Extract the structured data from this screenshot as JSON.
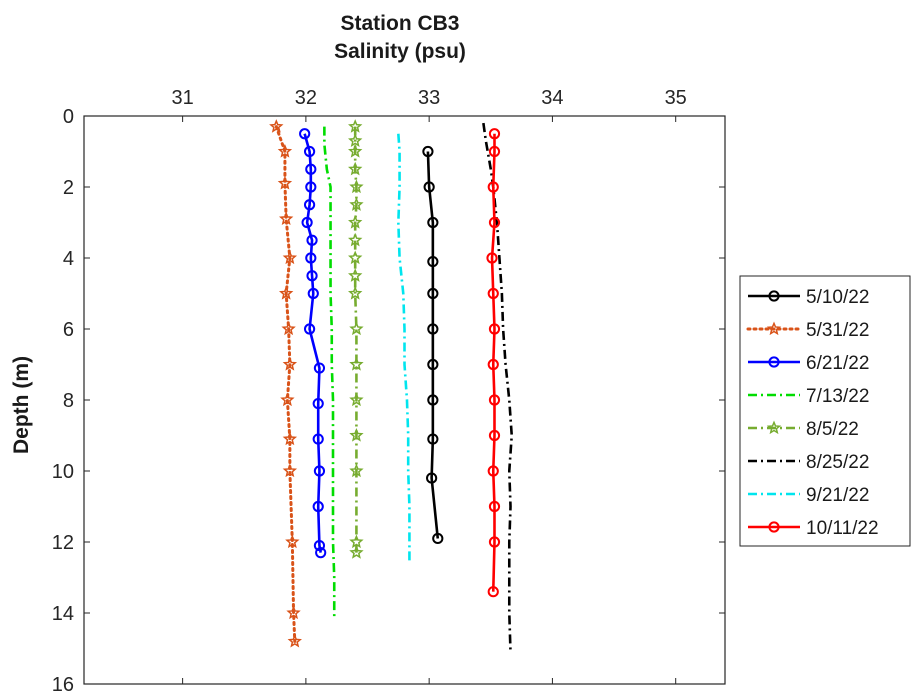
{
  "chart_data": {
    "type": "line",
    "title": "Station CB3",
    "xlabel": "Salinity (psu)",
    "ylabel": "Depth (m)",
    "x_axis_position": "top",
    "y_reversed": true,
    "xlim": [
      30.2,
      35.4
    ],
    "ylim": [
      0,
      16
    ],
    "xticks": [
      31,
      32,
      33,
      34,
      35
    ],
    "yticks": [
      0,
      2,
      4,
      6,
      8,
      10,
      12,
      14,
      16
    ],
    "grid": false,
    "legend_position": "right",
    "series": [
      {
        "name": "5/10/22",
        "color": "#000000",
        "dash": "solid",
        "marker": "circle",
        "points": [
          [
            32.99,
            1.0
          ],
          [
            33.0,
            2.0
          ],
          [
            33.03,
            3.0
          ],
          [
            33.03,
            4.1
          ],
          [
            33.03,
            5.0
          ],
          [
            33.03,
            6.0
          ],
          [
            33.03,
            7.0
          ],
          [
            33.03,
            8.0
          ],
          [
            33.03,
            9.1
          ],
          [
            33.02,
            10.2
          ],
          [
            33.07,
            11.9
          ]
        ]
      },
      {
        "name": "5/31/22",
        "color": "#d95319",
        "dash": "dotted",
        "marker": "star",
        "points": [
          [
            31.76,
            0.3
          ],
          [
            31.83,
            1.0
          ],
          [
            31.83,
            1.9
          ],
          [
            31.84,
            2.9
          ],
          [
            31.87,
            4.0
          ],
          [
            31.84,
            5.0
          ],
          [
            31.86,
            6.0
          ],
          [
            31.87,
            7.0
          ],
          [
            31.85,
            8.0
          ],
          [
            31.87,
            9.1
          ],
          [
            31.87,
            10.0
          ],
          [
            31.89,
            12.0
          ],
          [
            31.9,
            14.0
          ],
          [
            31.91,
            14.8
          ]
        ]
      },
      {
        "name": "6/21/22",
        "color": "#0000ff",
        "dash": "solid",
        "marker": "circle",
        "points": [
          [
            31.99,
            0.5
          ],
          [
            32.03,
            1.0
          ],
          [
            32.04,
            1.5
          ],
          [
            32.04,
            2.0
          ],
          [
            32.03,
            2.5
          ],
          [
            32.01,
            3.0
          ],
          [
            32.05,
            3.5
          ],
          [
            32.04,
            4.0
          ],
          [
            32.05,
            4.5
          ],
          [
            32.06,
            5.0
          ],
          [
            32.03,
            6.0
          ],
          [
            32.11,
            7.1
          ],
          [
            32.1,
            8.1
          ],
          [
            32.1,
            9.1
          ],
          [
            32.11,
            10.0
          ],
          [
            32.1,
            11.0
          ],
          [
            32.11,
            12.1
          ],
          [
            32.12,
            12.3
          ]
        ]
      },
      {
        "name": "7/13/22",
        "color": "#00dd00",
        "dash": "dashdot",
        "marker": "none",
        "points": [
          [
            32.15,
            0.3
          ],
          [
            32.15,
            0.8
          ],
          [
            32.17,
            1.5
          ],
          [
            32.2,
            2.0
          ],
          [
            32.2,
            3.0
          ],
          [
            32.2,
            4.0
          ],
          [
            32.2,
            5.0
          ],
          [
            32.21,
            6.0
          ],
          [
            32.21,
            7.0
          ],
          [
            32.22,
            8.0
          ],
          [
            32.22,
            9.0
          ],
          [
            32.22,
            10.0
          ],
          [
            32.22,
            11.0
          ],
          [
            32.22,
            12.0
          ],
          [
            32.23,
            13.0
          ],
          [
            32.23,
            14.1
          ]
        ]
      },
      {
        "name": "8/5/22",
        "color": "#77ac30",
        "dash": "dashdot",
        "marker": "star",
        "points": [
          [
            32.4,
            0.3
          ],
          [
            32.4,
            0.7
          ],
          [
            32.4,
            1.0
          ],
          [
            32.4,
            1.5
          ],
          [
            32.41,
            2.0
          ],
          [
            32.41,
            2.5
          ],
          [
            32.4,
            3.0
          ],
          [
            32.4,
            3.5
          ],
          [
            32.4,
            4.0
          ],
          [
            32.4,
            4.5
          ],
          [
            32.4,
            5.0
          ],
          [
            32.41,
            6.0
          ],
          [
            32.41,
            7.0
          ],
          [
            32.41,
            8.0
          ],
          [
            32.41,
            9.0
          ],
          [
            32.41,
            10.0
          ],
          [
            32.41,
            12.0
          ],
          [
            32.41,
            12.3
          ]
        ]
      },
      {
        "name": "8/25/22",
        "color": "#000000",
        "dash": "dashdot",
        "marker": "none",
        "points": [
          [
            33.44,
            0.2
          ],
          [
            33.46,
            0.7
          ],
          [
            33.5,
            1.5
          ],
          [
            33.52,
            2.0
          ],
          [
            33.55,
            3.0
          ],
          [
            33.57,
            4.0
          ],
          [
            33.59,
            5.0
          ],
          [
            33.6,
            6.0
          ],
          [
            33.62,
            7.0
          ],
          [
            33.65,
            8.0
          ],
          [
            33.67,
            9.0
          ],
          [
            33.65,
            10.0
          ],
          [
            33.66,
            11.0
          ],
          [
            33.65,
            12.0
          ],
          [
            33.65,
            13.0
          ],
          [
            33.65,
            14.0
          ],
          [
            33.66,
            15.1
          ]
        ]
      },
      {
        "name": "9/21/22",
        "color": "#00e5ee",
        "dash": "dashdot",
        "marker": "none",
        "points": [
          [
            32.75,
            0.5
          ],
          [
            32.76,
            1.0
          ],
          [
            32.76,
            2.0
          ],
          [
            32.75,
            3.0
          ],
          [
            32.76,
            4.0
          ],
          [
            32.79,
            5.0
          ],
          [
            32.8,
            6.0
          ],
          [
            32.8,
            7.0
          ],
          [
            32.82,
            8.0
          ],
          [
            32.83,
            9.0
          ],
          [
            32.83,
            10.0
          ],
          [
            32.84,
            11.0
          ],
          [
            32.84,
            12.0
          ],
          [
            32.84,
            12.6
          ]
        ]
      },
      {
        "name": "10/11/22",
        "color": "#ff0000",
        "dash": "solid",
        "marker": "circle",
        "points": [
          [
            33.53,
            0.5
          ],
          [
            33.53,
            1.0
          ],
          [
            33.52,
            2.0
          ],
          [
            33.53,
            3.0
          ],
          [
            33.51,
            4.0
          ],
          [
            33.52,
            5.0
          ],
          [
            33.53,
            6.0
          ],
          [
            33.52,
            7.0
          ],
          [
            33.53,
            8.0
          ],
          [
            33.53,
            9.0
          ],
          [
            33.52,
            10.0
          ],
          [
            33.53,
            11.0
          ],
          [
            33.53,
            12.0
          ],
          [
            33.52,
            13.4
          ]
        ]
      }
    ]
  }
}
